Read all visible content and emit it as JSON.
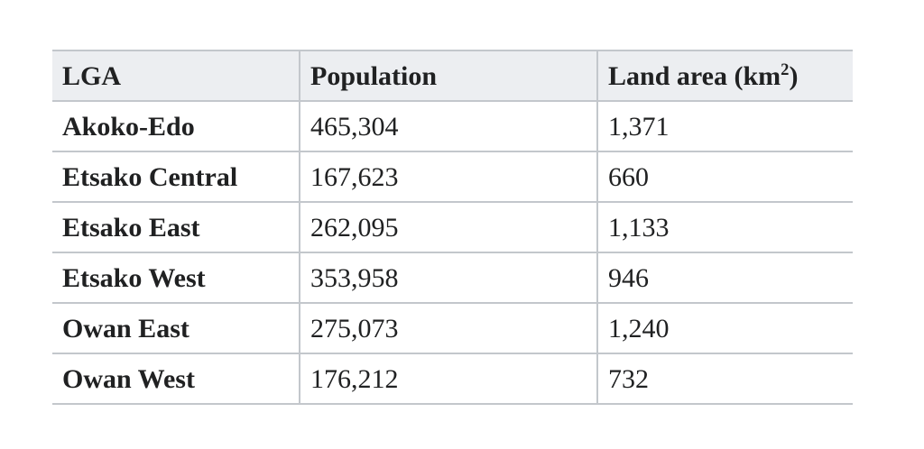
{
  "colors": {
    "header_bg": "#eceef1",
    "border": "#c3c7cc",
    "text": "#202122",
    "page_bg": "#ffffff"
  },
  "table": {
    "columns": [
      {
        "label": "LGA"
      },
      {
        "label": "Population"
      },
      {
        "label_prefix": "Land area (km",
        "label_sup": "2",
        "label_suffix": ")"
      }
    ],
    "rows": [
      {
        "lga": "Akoko-Edo",
        "population": "465,304",
        "land_area": "1,371"
      },
      {
        "lga": "Etsako Central",
        "population": "167,623",
        "land_area": "660"
      },
      {
        "lga": "Etsako East",
        "population": "262,095",
        "land_area": "1,133"
      },
      {
        "lga": "Etsako West",
        "population": "353,958",
        "land_area": "946"
      },
      {
        "lga": "Owan East",
        "population": "275,073",
        "land_area": "1,240"
      },
      {
        "lga": "Owan West",
        "population": "176,212",
        "land_area": "732"
      }
    ]
  },
  "chart_data": {
    "type": "table",
    "title": "",
    "columns": [
      "LGA",
      "Population",
      "Land area (km²)"
    ],
    "rows": [
      [
        "Akoko-Edo",
        465304,
        1371
      ],
      [
        "Etsako Central",
        167623,
        660
      ],
      [
        "Etsako East",
        262095,
        1133
      ],
      [
        "Etsako West",
        353958,
        946
      ],
      [
        "Owan East",
        275073,
        1240
      ],
      [
        "Owan West",
        176212,
        732
      ]
    ]
  }
}
